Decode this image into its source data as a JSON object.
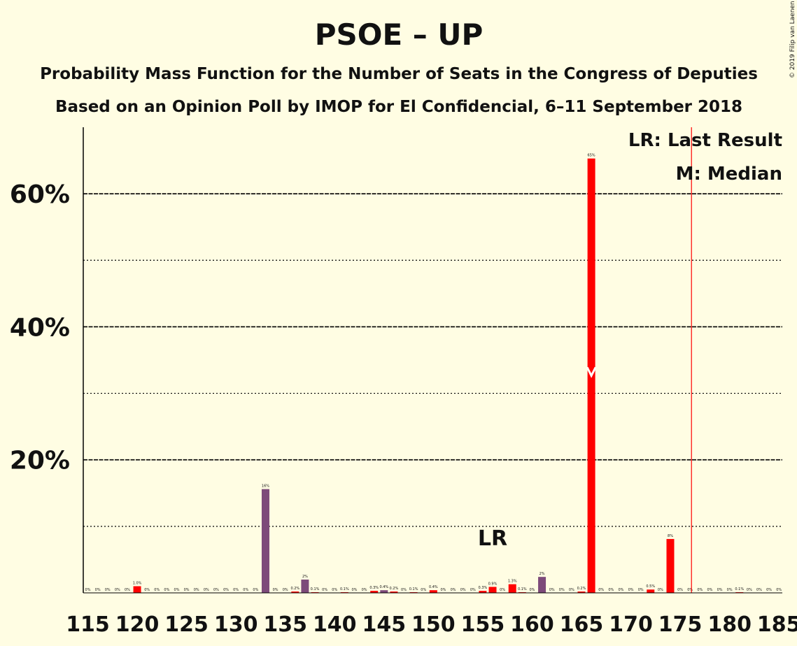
{
  "chart_data": {
    "type": "bar",
    "title": "PSOE – UP",
    "subtitle_1": "Probability Mass Function for the Number of Seats in the Congress of Deputies",
    "subtitle_2": "Based on an Opinion Poll by IMOP for El Confidencial, 6–11 September 2018",
    "copyright": "© 2019 Filip van Laenen",
    "ylim": [
      0,
      70
    ],
    "y_ticks": [
      {
        "value": 20,
        "label": "20%"
      },
      {
        "value": 40,
        "label": "40%"
      },
      {
        "value": 60,
        "label": "60%"
      }
    ],
    "y_minor_gridlines": [
      10,
      30,
      50
    ],
    "x_range": [
      115,
      185
    ],
    "x_ticks": [
      115,
      120,
      125,
      130,
      135,
      140,
      145,
      150,
      155,
      160,
      165,
      170,
      175,
      180,
      185
    ],
    "x": [
      115,
      116,
      117,
      118,
      119,
      120,
      121,
      122,
      123,
      124,
      125,
      126,
      127,
      128,
      129,
      130,
      131,
      132,
      133,
      134,
      135,
      136,
      137,
      138,
      139,
      140,
      141,
      142,
      143,
      144,
      145,
      146,
      147,
      148,
      149,
      150,
      151,
      152,
      153,
      154,
      155,
      156,
      157,
      158,
      159,
      160,
      161,
      162,
      163,
      164,
      165,
      166,
      167,
      168,
      169,
      170,
      171,
      172,
      173,
      174,
      175,
      176,
      177,
      178,
      179,
      180,
      181,
      182,
      183,
      184,
      185
    ],
    "values": [
      0,
      0,
      0,
      0,
      0,
      1.0,
      0,
      0,
      0,
      0,
      0,
      0,
      0,
      0,
      0,
      0,
      0,
      0,
      15.6,
      0,
      0,
      0.2,
      2.0,
      0.1,
      0,
      0,
      0.1,
      0,
      0,
      0.3,
      0.4,
      0.2,
      0,
      0.1,
      0,
      0.4,
      0,
      0,
      0,
      0,
      0.3,
      0.9,
      0,
      1.3,
      0.1,
      0,
      2.4,
      0,
      0,
      0,
      0.2,
      65.3,
      0,
      0,
      0,
      0,
      0,
      0.5,
      0,
      8.1,
      0,
      0,
      0,
      0,
      0,
      0,
      0.1,
      0,
      0,
      0,
      0
    ],
    "labels": [
      "0%",
      "0%",
      "0%",
      "0%",
      "0%",
      "1.0%",
      "0%",
      "0%",
      "0%",
      "0%",
      "0%",
      "0%",
      "0%",
      "0%",
      "0%",
      "0%",
      "0%",
      "0%",
      "16%",
      "0%",
      "0%",
      "0.2%",
      "2%",
      "0.1%",
      "0%",
      "0%",
      "0.1%",
      "0%",
      "0%",
      "0.3%",
      "0.4%",
      "0.2%",
      "0%",
      "0.1%",
      "0%",
      "0.4%",
      "0%",
      "0%",
      "0%",
      "0%",
      "0.3%",
      "0.9%",
      "0%",
      "1.3%",
      "0.1%",
      "0%",
      "2%",
      "0%",
      "0%",
      "0%",
      "0.2%",
      "65%",
      "0%",
      "0%",
      "0%",
      "0%",
      "0%",
      "0.5%",
      "0%",
      "8%",
      "0%",
      "0%",
      "0%",
      "0%",
      "0%",
      "0%",
      "0.1%",
      "0%",
      "0%",
      "0%",
      "0%"
    ],
    "purple_seats": [
      133,
      137,
      145,
      161
    ],
    "colors": {
      "bar": "#FF0000",
      "bar_alt": "#7D4A7A",
      "background": "#FFFDE3",
      "last_result_line": "#FF0000",
      "axis": "#000000"
    },
    "last_result": {
      "seat": 176,
      "marker_label": "LR",
      "marker_seat": 156
    },
    "median": {
      "seat": 166
    },
    "legend": {
      "lr": "LR: Last Result",
      "median": "M: Median",
      "placement": "top-right"
    },
    "grid": true
  }
}
